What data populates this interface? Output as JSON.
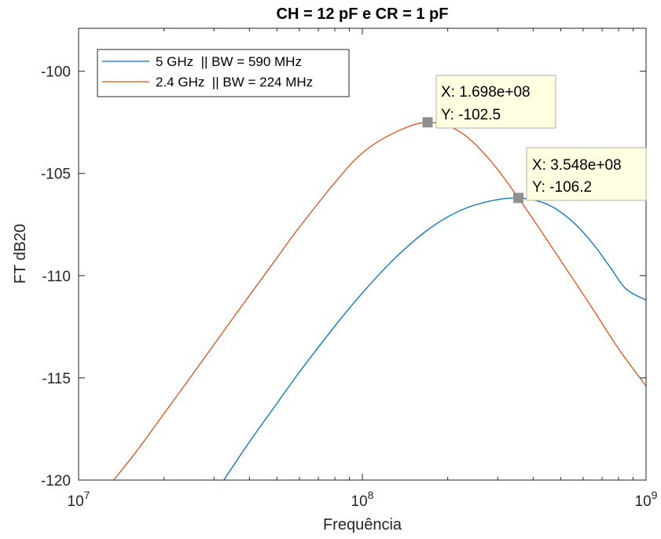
{
  "chart_data": {
    "type": "line",
    "title": "CH = 12 pF e CR = 1 pF",
    "xlabel": "Frequência",
    "ylabel": "FT dB20",
    "xscale": "log",
    "xlim": [
      10000000,
      1000000000
    ],
    "ylim": [
      -120,
      -97.9
    ],
    "xticks": [
      {
        "value": 10000000,
        "base": "10",
        "exp": "7"
      },
      {
        "value": 100000000,
        "base": "10",
        "exp": "8"
      },
      {
        "value": 1000000000,
        "base": "10",
        "exp": "9"
      }
    ],
    "yticks": [
      {
        "value": -100,
        "label": "-100"
      },
      {
        "value": -105,
        "label": "-105"
      },
      {
        "value": -110,
        "label": "-110"
      },
      {
        "value": -115,
        "label": "-115"
      },
      {
        "value": -120,
        "label": "-120"
      }
    ],
    "grid": false,
    "legend_position": "top-left",
    "series": [
      {
        "name": "5 GHz  || BW = 590 MHz",
        "color": "#0072bd",
        "points": [
          [
            32500000,
            -120.0
          ],
          [
            40000000,
            -118.13
          ],
          [
            50000000,
            -116.25
          ],
          [
            60000000,
            -114.72
          ],
          [
            80000000,
            -112.47
          ],
          [
            100000000,
            -110.85
          ],
          [
            130000000,
            -109.16
          ],
          [
            170000000,
            -107.76
          ],
          [
            220000000,
            -106.83
          ],
          [
            280000000,
            -106.36
          ],
          [
            354800000,
            -106.2
          ],
          [
            450000000,
            -106.52
          ],
          [
            550000000,
            -107.35
          ],
          [
            650000000,
            -108.44
          ],
          [
            750000000,
            -109.62
          ],
          [
            850000000,
            -110.65
          ],
          [
            1000000000,
            -111.2
          ]
        ]
      },
      {
        "name": "2.4 GHz  || BW = 224 MHz",
        "color": "#d95319",
        "points": [
          [
            13300000,
            -120.0
          ],
          [
            16000000,
            -118.59
          ],
          [
            20000000,
            -116.75
          ],
          [
            25000000,
            -114.9
          ],
          [
            30000000,
            -113.37
          ],
          [
            40000000,
            -110.97
          ],
          [
            50000000,
            -109.13
          ],
          [
            60000000,
            -107.63
          ],
          [
            80000000,
            -105.45
          ],
          [
            100000000,
            -104.0
          ],
          [
            130000000,
            -103.0
          ],
          [
            169800000,
            -102.5
          ],
          [
            220000000,
            -102.95
          ],
          [
            280000000,
            -104.3
          ],
          [
            354800000,
            -106.2
          ],
          [
            450000000,
            -108.3
          ],
          [
            550000000,
            -110.12
          ],
          [
            650000000,
            -111.64
          ],
          [
            800000000,
            -113.58
          ],
          [
            1000000000,
            -115.4
          ]
        ]
      }
    ],
    "datatips": [
      {
        "x": 169800000,
        "y": -102.5,
        "line1": "X: 1.698e+08",
        "line2": "Y: -102.5"
      },
      {
        "x": 354800000,
        "y": -106.2,
        "line1": "X: 3.548e+08",
        "line2": "Y: -106.2"
      }
    ],
    "colors": {
      "axis": "#262626",
      "tip_background": "#ffffe1",
      "tip_border": "#b0b0a0",
      "marker": "#8f8f8f"
    }
  }
}
